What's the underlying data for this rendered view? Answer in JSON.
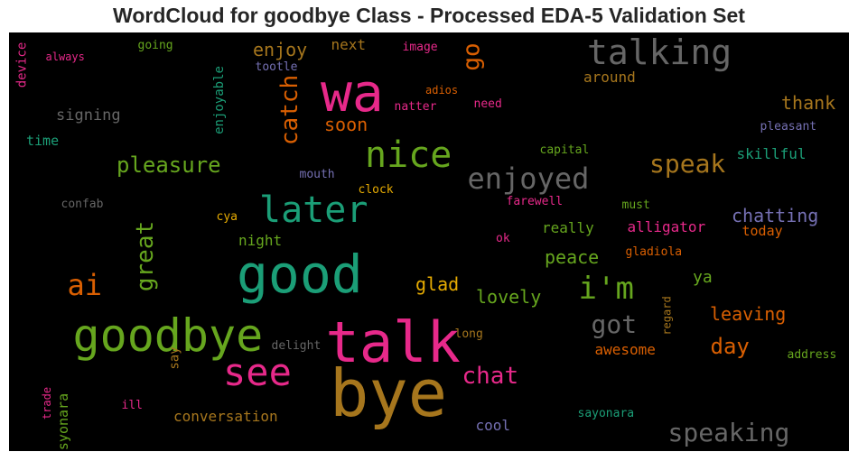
{
  "chart_data": {
    "type": "wordcloud",
    "title": "WordCloud for goodbye Class - Processed EDA-5 Validation Set",
    "colormap": [
      "#1b9e77",
      "#d95f02",
      "#7570b3",
      "#e7298a",
      "#66a61e",
      "#e6ab02",
      "#a6761d",
      "#666666"
    ],
    "background": "#000000",
    "words": [
      "bye",
      "talk",
      "goodbye",
      "good",
      "wa",
      "see",
      "later",
      "talking",
      "nice",
      "enjoyed",
      "i'm",
      "speak",
      "pleasure",
      "ai",
      "speaking",
      "got",
      "chat",
      "go",
      "catch",
      "great",
      "day",
      "enjoy",
      "glad",
      "lovely",
      "chatting",
      "leaving",
      "thank",
      "peace",
      "soon",
      "signing",
      "skillful",
      "alligator",
      "ya",
      "conversation",
      "awesome",
      "around",
      "device",
      "enjoyable",
      "next",
      "really",
      "night",
      "cool",
      "time",
      "today",
      "syonara",
      "say",
      "going",
      "always",
      "tootle",
      "image",
      "adios",
      "need",
      "natter",
      "pleasant",
      "capital",
      "mouth",
      "clock",
      "farewell",
      "must",
      "confab",
      "cya",
      "ok",
      "gladiola",
      "regard",
      "long",
      "delight",
      "address",
      "sayonara",
      "trade",
      "ill"
    ]
  }
}
